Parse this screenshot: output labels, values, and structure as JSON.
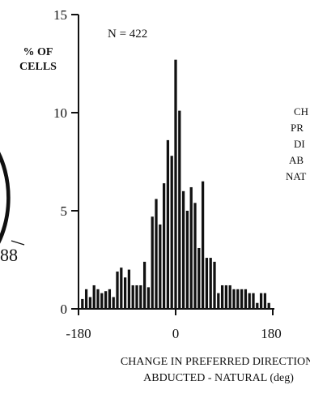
{
  "ylabel": "% OF\nCELLS",
  "annotation": "N = 422",
  "side_text": [
    "CH",
    "PR",
    "DI",
    "AB",
    "NAT"
  ],
  "side_number": "88",
  "chart_data": {
    "type": "bar",
    "title": "",
    "xlabel_lines": [
      "CHANGE IN PREFERRED DIRECTION:",
      "ABDUCTED - NATURAL (deg)"
    ],
    "ylabel": "% OF CELLS",
    "xlim": [
      -180,
      180
    ],
    "ylim": [
      0,
      15
    ],
    "xticks": [
      -180,
      0,
      180
    ],
    "yticks": [
      0,
      5,
      10,
      15
    ],
    "bin_width": 7.2,
    "bins": [
      {
        "x": -172.8,
        "y": 0.5
      },
      {
        "x": -165.6,
        "y": 1.0
      },
      {
        "x": -158.4,
        "y": 0.6
      },
      {
        "x": -151.2,
        "y": 1.2
      },
      {
        "x": -144.0,
        "y": 1.0
      },
      {
        "x": -136.8,
        "y": 0.8
      },
      {
        "x": -129.6,
        "y": 0.9
      },
      {
        "x": -122.4,
        "y": 1.0
      },
      {
        "x": -115.2,
        "y": 0.6
      },
      {
        "x": -108.0,
        "y": 1.9
      },
      {
        "x": -100.8,
        "y": 2.1
      },
      {
        "x": -93.6,
        "y": 1.6
      },
      {
        "x": -86.4,
        "y": 2.0
      },
      {
        "x": -79.2,
        "y": 1.2
      },
      {
        "x": -72.0,
        "y": 1.2
      },
      {
        "x": -64.8,
        "y": 1.2
      },
      {
        "x": -57.6,
        "y": 2.4
      },
      {
        "x": -50.4,
        "y": 1.1
      },
      {
        "x": -43.2,
        "y": 4.7
      },
      {
        "x": -36.0,
        "y": 5.6
      },
      {
        "x": -28.8,
        "y": 4.3
      },
      {
        "x": -21.6,
        "y": 6.4
      },
      {
        "x": -14.4,
        "y": 8.6
      },
      {
        "x": -7.2,
        "y": 7.8
      },
      {
        "x": 0.0,
        "y": 12.7
      },
      {
        "x": 7.2,
        "y": 10.1
      },
      {
        "x": 14.4,
        "y": 6.0
      },
      {
        "x": 21.6,
        "y": 5.0
      },
      {
        "x": 28.8,
        "y": 6.2
      },
      {
        "x": 36.0,
        "y": 5.4
      },
      {
        "x": 43.2,
        "y": 3.1
      },
      {
        "x": 50.4,
        "y": 6.5
      },
      {
        "x": 57.6,
        "y": 2.6
      },
      {
        "x": 64.8,
        "y": 2.6
      },
      {
        "x": 72.0,
        "y": 2.4
      },
      {
        "x": 79.2,
        "y": 0.8
      },
      {
        "x": 86.4,
        "y": 1.2
      },
      {
        "x": 93.6,
        "y": 1.2
      },
      {
        "x": 100.8,
        "y": 1.2
      },
      {
        "x": 108.0,
        "y": 1.0
      },
      {
        "x": 115.2,
        "y": 1.0
      },
      {
        "x": 122.4,
        "y": 1.0
      },
      {
        "x": 129.6,
        "y": 1.0
      },
      {
        "x": 136.8,
        "y": 0.8
      },
      {
        "x": 144.0,
        "y": 0.8
      },
      {
        "x": 151.2,
        "y": 0.3
      },
      {
        "x": 158.4,
        "y": 0.8
      },
      {
        "x": 165.6,
        "y": 0.8
      },
      {
        "x": 172.8,
        "y": 0.3
      }
    ]
  }
}
